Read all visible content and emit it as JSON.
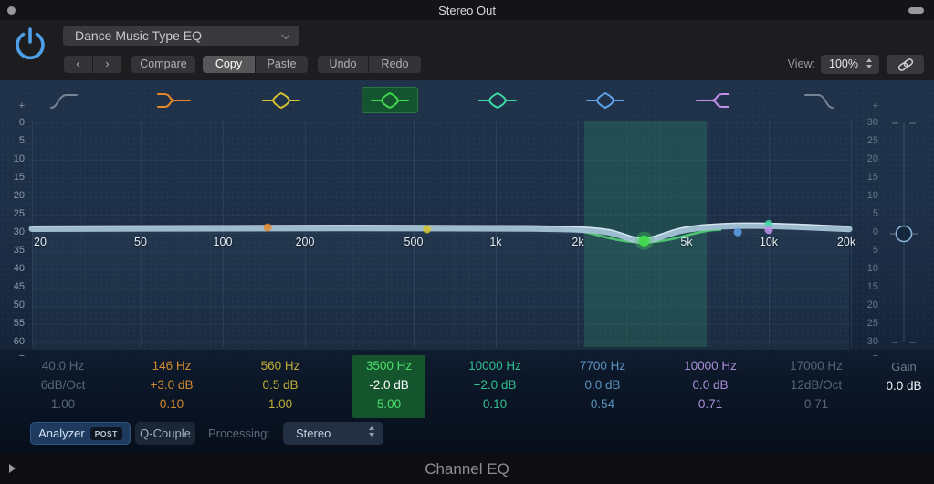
{
  "window": {
    "title": "Stereo Out"
  },
  "header": {
    "preset": "Dance Music Type EQ",
    "prev": "‹",
    "next": "›",
    "compare": "Compare",
    "copy": "Copy",
    "paste": "Paste",
    "undo": "Undo",
    "redo": "Redo",
    "view_label": "View:",
    "view_value": "100%"
  },
  "graph": {
    "plus": "+",
    "minus": "−",
    "freq_ticks": [
      "20",
      "50",
      "100",
      "200",
      "500",
      "1k",
      "2k",
      "5k",
      "10k",
      "20k"
    ],
    "freq_hz": [
      20,
      50,
      100,
      200,
      500,
      1000,
      2000,
      5000,
      10000,
      20000
    ],
    "left_scale": [
      "0",
      "5",
      "10",
      "15",
      "20",
      "25",
      "30",
      "35",
      "40",
      "45",
      "50",
      "55",
      "60"
    ],
    "right_scale": [
      "30",
      "25",
      "20",
      "15",
      "10",
      "5",
      "0",
      "5",
      "10",
      "15",
      "20",
      "25",
      "30"
    ]
  },
  "bands": [
    {
      "name": "band-1-highpass",
      "type": "highpass",
      "state": "off",
      "freq": "40.0 Hz",
      "gain": "6dB/Oct",
      "q": "1.00",
      "color": "#8b98a8",
      "text_color": "#55657a"
    },
    {
      "name": "band-2-lowshelf",
      "type": "lowshelf",
      "state": "on",
      "freq": "146 Hz",
      "gain": "+3.0 dB",
      "q": "0.10",
      "color": "#e5862b",
      "text_color": "#d08a2f",
      "freq_hz": 146,
      "curve_db": 1.5
    },
    {
      "name": "band-3-peak",
      "type": "peak",
      "state": "on",
      "freq": "560 Hz",
      "gain": "0.5 dB",
      "q": "1.00",
      "color": "#d4c22e",
      "text_color": "#bfae35",
      "freq_hz": 560,
      "curve_db": 1.0
    },
    {
      "name": "band-4-peak",
      "type": "peak",
      "state": "selected",
      "freq": "3500 Hz",
      "gain": "-2.0 dB",
      "q": "5.00",
      "color": "#42d852",
      "text_color": "#4fdf6e",
      "gain_text_color": "#ffffff",
      "freq_hz": 3500,
      "curve_db": -2.2
    },
    {
      "name": "band-5-peak",
      "type": "peak",
      "state": "on",
      "freq": "10000 Hz",
      "gain": "+2.0 dB",
      "q": "0.10",
      "color": "#3cd9a4",
      "text_color": "#2fbf8f",
      "freq_hz": 10000,
      "curve_db": 2.4
    },
    {
      "name": "band-6-peak",
      "type": "peak",
      "state": "on",
      "freq": "7700 Hz",
      "gain": "0.0 dB",
      "q": "0.54",
      "color": "#5fa3e8",
      "text_color": "#5b92c0",
      "freq_hz": 7700,
      "curve_db": 0.2
    },
    {
      "name": "band-7-highshelf",
      "type": "highshelf",
      "state": "on",
      "freq": "10000 Hz",
      "gain": "0.0 dB",
      "q": "0.71",
      "color": "#c490ec",
      "text_color": "#a98fd8",
      "freq_hz": 10000,
      "curve_db": 0.8
    },
    {
      "name": "band-8-lowpass",
      "type": "lowpass",
      "state": "off",
      "freq": "17000 Hz",
      "gain": "12dB/Oct",
      "q": "0.71",
      "color": "#8b98a8",
      "text_color": "#55657a"
    }
  ],
  "output_gain": {
    "label": "Gain",
    "value": "0.0 dB"
  },
  "controls": {
    "analyzer": "Analyzer",
    "analyzer_badge": "POST",
    "q_couple": "Q-Couple",
    "processing_label": "Processing:",
    "processing_value": "Stereo"
  },
  "footer": {
    "plugin_name": "Channel EQ"
  },
  "colors": {
    "accent_blue": "#4d9fe8",
    "selected_green_bg": "#14552e",
    "curve": "#a4c3d6"
  }
}
